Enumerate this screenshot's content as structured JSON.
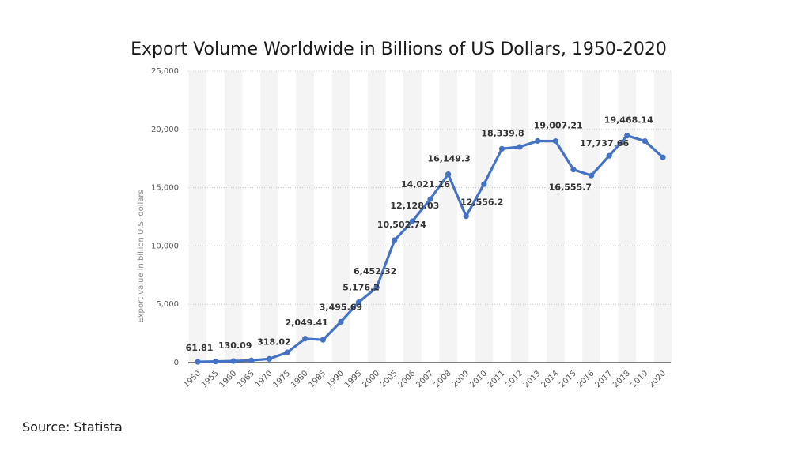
{
  "slide": {
    "title": "Export Volume Worldwide in Billions of US Dollars, 1950-2020",
    "source": "Source:  Statista"
  },
  "chart_data": {
    "type": "line",
    "title": "Export Volume Worldwide in Billions of US Dollars, 1950-2020",
    "xlabel": "",
    "ylabel": "Export value in billion U.S. dollars",
    "ylim": [
      0,
      25000
    ],
    "yticks": [
      0,
      5000,
      10000,
      15000,
      20000,
      25000
    ],
    "ytick_labels": [
      "0",
      "5,000",
      "10,000",
      "15,000",
      "20,000",
      "25,000"
    ],
    "grid": true,
    "color": "#4472c4",
    "categories": [
      "1950",
      "1955",
      "1960",
      "1965",
      "1970",
      "1975",
      "1980",
      "1985",
      "1990",
      "1995",
      "2000",
      "2005",
      "2006",
      "2007",
      "2008",
      "2009",
      "2010",
      "2011",
      "2012",
      "2013",
      "2014",
      "2015",
      "2016",
      "2017",
      "2018",
      "2019",
      "2020"
    ],
    "values": [
      61.81,
      93.5,
      130.09,
      186.4,
      318.02,
      877.0,
      2049.41,
      1954.0,
      3495.69,
      5176.2,
      6452.32,
      10502.74,
      12128.03,
      14021.16,
      16149.3,
      12556.2,
      15300.0,
      18339.8,
      18500.0,
      19007.21,
      19000.0,
      16555.7,
      16040.0,
      17737.66,
      19468.14,
      19000.0,
      17600.0
    ],
    "data_labels": [
      {
        "index": 0,
        "text": "61.81"
      },
      {
        "index": 2,
        "text": "130.09"
      },
      {
        "index": 4,
        "text": "318.02"
      },
      {
        "index": 6,
        "text": "2,049.41"
      },
      {
        "index": 8,
        "text": "3,495.69"
      },
      {
        "index": 9,
        "text": "5,176.2"
      },
      {
        "index": 10,
        "text": "6,452.32"
      },
      {
        "index": 11,
        "text": "10,502.74"
      },
      {
        "index": 12,
        "text": "12,128.03"
      },
      {
        "index": 13,
        "text": "14,021.16"
      },
      {
        "index": 14,
        "text": "16,149.3"
      },
      {
        "index": 15,
        "text": "12,556.2"
      },
      {
        "index": 17,
        "text": "18,339.8"
      },
      {
        "index": 19,
        "text": "19,007.21"
      },
      {
        "index": 21,
        "text": "16,555.7"
      },
      {
        "index": 23,
        "text": "17,737.66"
      },
      {
        "index": 24,
        "text": "19,468.14"
      }
    ]
  }
}
